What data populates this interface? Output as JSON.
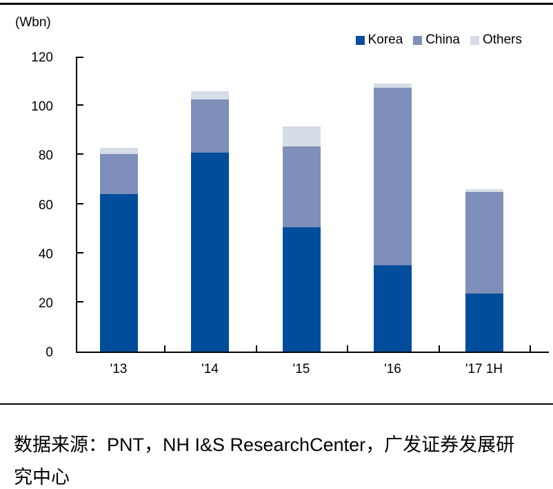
{
  "chart_data": {
    "type": "bar",
    "stacked": true,
    "unit_label": "(Wbn)",
    "categories": [
      "'13",
      "'14",
      "'15",
      "'16",
      "'17 1H"
    ],
    "series": [
      {
        "name": "Korea",
        "color": "#004E9B",
        "values": [
          64,
          81,
          50.5,
          35,
          23.5
        ]
      },
      {
        "name": "China",
        "color": "#7E8FBA",
        "values": [
          16.5,
          21.5,
          33,
          72.5,
          41.5
        ]
      },
      {
        "name": "Others",
        "color": "#D6DDE7",
        "values": [
          2.5,
          3.5,
          8,
          1.5,
          1
        ]
      }
    ],
    "totals": [
      83,
      106,
      91.5,
      109,
      66
    ],
    "ylim": [
      0,
      120
    ],
    "yticks": [
      0,
      20,
      40,
      60,
      80,
      100,
      120
    ],
    "grid": false,
    "legend_position": "top-right",
    "axis_color": "#000000"
  },
  "source": {
    "text": "数据来源：PNT，NH I&S ResearchCenter，广发证券发展研究中心",
    "lines": [
      "数据来源：PNT，NH I&S ResearchCenter，广发证券发展研",
      "究中心"
    ]
  }
}
